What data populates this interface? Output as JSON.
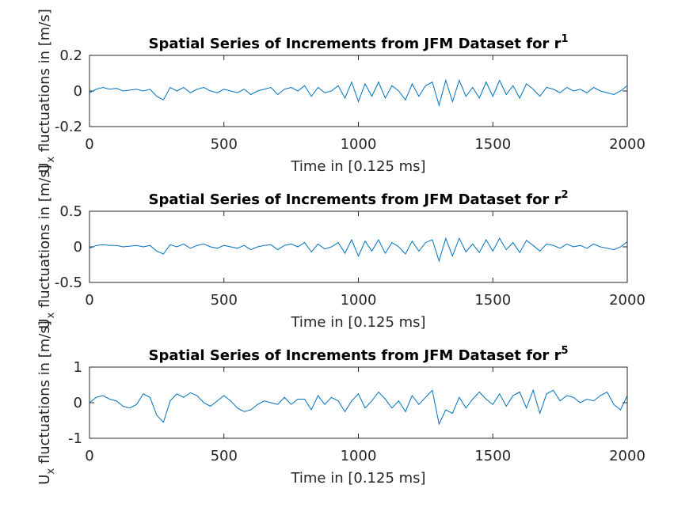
{
  "chart_data": [
    {
      "type": "line",
      "title": "Spatial Series of Increments from JFM Dataset for r",
      "title_superscript": "1",
      "ylabel": {
        "base": "U",
        "subscript": "x",
        "rest": " fluctuations in [m/s]"
      },
      "xlabel": "Time in [0.125 ms]",
      "xlim": [
        0,
        2000
      ],
      "xticks": [
        0,
        500,
        1000,
        1500,
        2000
      ],
      "ylim": [
        -0.2,
        0.2
      ],
      "yticks": [
        -0.2,
        0,
        0.2
      ],
      "color": "#0072bd",
      "x": [
        0,
        25,
        50,
        75,
        100,
        125,
        150,
        175,
        200,
        225,
        250,
        275,
        300,
        325,
        350,
        375,
        400,
        425,
        450,
        475,
        500,
        525,
        550,
        575,
        600,
        625,
        650,
        675,
        700,
        725,
        750,
        775,
        800,
        825,
        850,
        875,
        900,
        925,
        950,
        975,
        1000,
        1025,
        1050,
        1075,
        1100,
        1125,
        1150,
        1175,
        1200,
        1225,
        1250,
        1275,
        1300,
        1325,
        1350,
        1375,
        1400,
        1425,
        1450,
        1475,
        1500,
        1525,
        1550,
        1575,
        1600,
        1625,
        1650,
        1675,
        1700,
        1725,
        1750,
        1775,
        1800,
        1825,
        1850,
        1875,
        1900,
        1925,
        1950,
        1975,
        2000
      ],
      "values": [
        -0.01,
        0.01,
        0.02,
        0.01,
        0.015,
        0,
        0.005,
        0.01,
        0,
        0.01,
        -0.03,
        -0.05,
        0.02,
        0,
        0.02,
        -0.01,
        0.01,
        0.02,
        0,
        -0.01,
        0.01,
        0,
        -0.01,
        0.01,
        -0.02,
        0,
        0.01,
        0.02,
        -0.02,
        0.01,
        0.02,
        0,
        0.03,
        -0.03,
        0.02,
        -0.01,
        0,
        0.03,
        -0.04,
        0.05,
        -0.06,
        0.04,
        -0.03,
        0.05,
        -0.04,
        0.03,
        0,
        -0.05,
        0.04,
        -0.03,
        0.03,
        0.05,
        -0.08,
        0.06,
        -0.06,
        0.06,
        -0.03,
        0.02,
        -0.04,
        0.05,
        -0.03,
        0.06,
        -0.02,
        0.03,
        -0.04,
        0.04,
        0.01,
        -0.03,
        0.02,
        0.01,
        -0.01,
        0.02,
        0,
        0.01,
        -0.01,
        0.02,
        0,
        -0.01,
        -0.02,
        0,
        0.03
      ]
    },
    {
      "type": "line",
      "title": "Spatial Series of Increments from JFM Dataset for r",
      "title_superscript": "2",
      "ylabel": {
        "base": "U",
        "subscript": "x",
        "rest": " fluctuations in [m/s]"
      },
      "xlabel": "Time in [0.125 ms]",
      "xlim": [
        0,
        2000
      ],
      "xticks": [
        0,
        500,
        1000,
        1500,
        2000
      ],
      "ylim": [
        -0.5,
        0.5
      ],
      "yticks": [
        -0.5,
        0,
        0.5
      ],
      "color": "#0072bd",
      "x": [
        0,
        25,
        50,
        75,
        100,
        125,
        150,
        175,
        200,
        225,
        250,
        275,
        300,
        325,
        350,
        375,
        400,
        425,
        450,
        475,
        500,
        525,
        550,
        575,
        600,
        625,
        650,
        675,
        700,
        725,
        750,
        775,
        800,
        825,
        850,
        875,
        900,
        925,
        950,
        975,
        1000,
        1025,
        1050,
        1075,
        1100,
        1125,
        1150,
        1175,
        1200,
        1225,
        1250,
        1275,
        1300,
        1325,
        1350,
        1375,
        1400,
        1425,
        1450,
        1475,
        1500,
        1525,
        1550,
        1575,
        1600,
        1625,
        1650,
        1675,
        1700,
        1725,
        1750,
        1775,
        1800,
        1825,
        1850,
        1875,
        1900,
        1925,
        1950,
        1975,
        2000
      ],
      "values": [
        -0.02,
        0.02,
        0.03,
        0.02,
        0.02,
        0,
        0.01,
        0.02,
        0,
        0.02,
        -0.06,
        -0.1,
        0.03,
        0,
        0.04,
        -0.02,
        0.02,
        0.04,
        0,
        -0.02,
        0.02,
        0,
        -0.02,
        0.02,
        -0.04,
        0,
        0.02,
        0.03,
        -0.04,
        0.02,
        0.04,
        0,
        0.06,
        -0.07,
        0.04,
        -0.03,
        0,
        0.06,
        -0.09,
        0.1,
        -0.13,
        0.08,
        -0.06,
        0.1,
        -0.09,
        0.06,
        0,
        -0.1,
        0.08,
        -0.06,
        0.06,
        0.1,
        -0.2,
        0.12,
        -0.13,
        0.12,
        -0.07,
        0.04,
        -0.08,
        0.1,
        -0.06,
        0.12,
        -0.04,
        0.06,
        -0.08,
        0.09,
        0.02,
        -0.06,
        0.04,
        0.02,
        -0.02,
        0.04,
        0,
        0.02,
        -0.02,
        0.04,
        0,
        -0.02,
        -0.04,
        0,
        0.07
      ]
    },
    {
      "type": "line",
      "title": "Spatial Series of Increments from JFM Dataset for r",
      "title_superscript": "5",
      "ylabel": {
        "base": "U",
        "subscript": "x",
        "rest": " fluctuations in [m/s]"
      },
      "xlabel": "Time in [0.125 ms]",
      "xlim": [
        0,
        2000
      ],
      "xticks": [
        0,
        500,
        1000,
        1500,
        2000
      ],
      "ylim": [
        -1,
        1
      ],
      "yticks": [
        -1,
        0,
        1
      ],
      "color": "#0072bd",
      "x": [
        0,
        25,
        50,
        75,
        100,
        125,
        150,
        175,
        200,
        225,
        250,
        275,
        300,
        325,
        350,
        375,
        400,
        425,
        450,
        475,
        500,
        525,
        550,
        575,
        600,
        625,
        650,
        675,
        700,
        725,
        750,
        775,
        800,
        825,
        850,
        875,
        900,
        925,
        950,
        975,
        1000,
        1025,
        1050,
        1075,
        1100,
        1125,
        1150,
        1175,
        1200,
        1225,
        1250,
        1275,
        1300,
        1325,
        1350,
        1375,
        1400,
        1425,
        1450,
        1475,
        1500,
        1525,
        1550,
        1575,
        1600,
        1625,
        1650,
        1675,
        1700,
        1725,
        1750,
        1775,
        1800,
        1825,
        1850,
        1875,
        1900,
        1925,
        1950,
        1975,
        2000
      ],
      "values": [
        0,
        0.15,
        0.2,
        0.1,
        0.05,
        -0.1,
        -0.15,
        -0.05,
        0.25,
        0.15,
        -0.35,
        -0.55,
        0.05,
        0.25,
        0.15,
        0.28,
        0.2,
        0,
        -0.1,
        0.05,
        0.2,
        0.05,
        -0.15,
        -0.25,
        -0.2,
        -0.05,
        0.05,
        0,
        -0.05,
        0.15,
        -0.05,
        0.1,
        0.1,
        -0.2,
        0.2,
        -0.05,
        0.15,
        0.05,
        -0.25,
        0.05,
        0.25,
        -0.15,
        0.05,
        0.3,
        0.1,
        -0.15,
        0.05,
        -0.25,
        0.2,
        -0.05,
        0.15,
        0.35,
        -0.6,
        -0.2,
        -0.3,
        0.15,
        -0.15,
        0.1,
        0.3,
        0.1,
        -0.05,
        0.25,
        -0.1,
        0.2,
        0.3,
        -0.15,
        0.35,
        -0.3,
        0.25,
        0.35,
        0.05,
        0.2,
        0.15,
        0,
        0.1,
        0.05,
        0.2,
        0.3,
        -0.05,
        -0.2,
        0.2
      ]
    }
  ]
}
